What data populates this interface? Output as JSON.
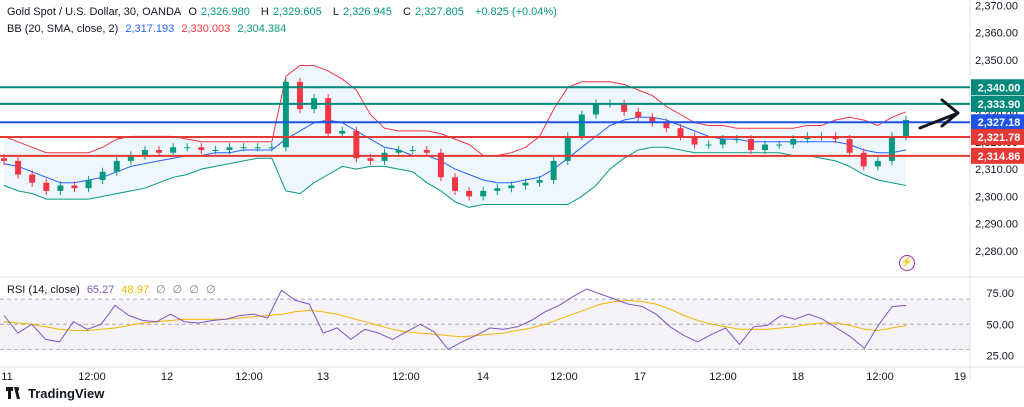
{
  "header": {
    "symbol": "Gold Spot / U.S. Dollar, 30, OANDA",
    "open_label": "O",
    "open": "2,326.980",
    "high_label": "H",
    "high": "2,329.605",
    "low_label": "L",
    "low": "2,326.945",
    "close_label": "C",
    "close": "2,327.805",
    "change": "+0.825 (+0.04%)"
  },
  "bb": {
    "label": "BB (20, SMA, close, 2)",
    "basis": "2,317.193",
    "upper": "2,330.003",
    "lower": "2,304.384"
  },
  "rsi": {
    "label": "RSI (14, close)",
    "value": "65.27",
    "ma": "48.97",
    "extras": [
      "∅",
      "∅",
      "∅",
      "∅"
    ]
  },
  "brand": "TradingView",
  "colors": {
    "up": "#089981",
    "down": "#f23645",
    "bb_basis": "#2962ff",
    "bb_upper": "#f23645",
    "bb_lower": "#089981",
    "rsi": "#7e57c2",
    "rsi_ma": "#f7b500",
    "level_green": "#00897b",
    "level_blue": "#1e53e5",
    "level_red": "#e53935"
  },
  "chart_data": [
    {
      "type": "line",
      "title": "Gold Spot / U.S. Dollar, 30, OANDA",
      "x_ticks": [
        "11",
        "12:00",
        "12",
        "12:00",
        "13",
        "12:00",
        "14",
        "12:00",
        "17",
        "12:00",
        "18",
        "12:00",
        "19"
      ],
      "y_ticks": [
        2280,
        2290,
        2300,
        2310,
        2320,
        2330,
        2340,
        2350,
        2360,
        2370
      ],
      "y_tick_labels": [
        "2,280.00",
        "2,290.00",
        "2,300.00",
        "2,310.00",
        "2,320.00",
        "2,330.00",
        "2,340.00",
        "2,350.00",
        "2,360.00",
        "2,370.00"
      ],
      "ylim": [
        2273,
        2372
      ],
      "grid": false,
      "horizontal_levels": [
        {
          "value": 2340.0,
          "label": "2,340.00",
          "color": "#00897b"
        },
        {
          "value": 2333.9,
          "label": "2,333.90",
          "color": "#00897b"
        },
        {
          "value": 2327.18,
          "label": "2,327.18",
          "color": "#1e53e5"
        },
        {
          "value": 2321.78,
          "label": "2,321.78",
          "color": "#e53935"
        },
        {
          "value": 2314.86,
          "label": "2,314.86",
          "color": "#e53935"
        }
      ],
      "series": [
        {
          "name": "Close",
          "values": [
            2313,
            2308,
            2305,
            2302,
            2304,
            2303,
            2306,
            2309,
            2313,
            2315,
            2317,
            2316,
            2318,
            2318,
            2317,
            2317,
            2318,
            2318,
            2318,
            2318,
            2342,
            2332,
            2336,
            2323,
            2324,
            2314,
            2313,
            2316,
            2317,
            2317,
            2316,
            2307,
            2302,
            2300,
            2302,
            2303,
            2304,
            2305,
            2306,
            2313,
            2322,
            2330,
            2334,
            2334,
            2331,
            2329,
            2327,
            2325,
            2322,
            2319,
            2319,
            2321,
            2321,
            2317,
            2319,
            2319,
            2321,
            2322,
            2322,
            2321,
            2316,
            2311,
            2313,
            2322,
            2328
          ]
        },
        {
          "name": "BB Upper",
          "values": [
            2322,
            2320,
            2318,
            2316,
            2316,
            2316,
            2316,
            2318,
            2321,
            2322,
            2322,
            2322,
            2322,
            2321,
            2320,
            2320,
            2320,
            2320,
            2320,
            2320,
            2344,
            2348,
            2348,
            2346,
            2343,
            2339,
            2330,
            2325,
            2324,
            2324,
            2324,
            2323,
            2321,
            2319,
            2315,
            2315,
            2316,
            2318,
            2322,
            2332,
            2340,
            2342,
            2342,
            2342,
            2341,
            2339,
            2337,
            2333,
            2330,
            2327,
            2326,
            2326,
            2325,
            2325,
            2325,
            2325,
            2325,
            2326,
            2326,
            2328,
            2329,
            2328,
            2326,
            2329,
            2331
          ]
        },
        {
          "name": "BB Basis",
          "values": [
            2312,
            2311,
            2309,
            2307,
            2305,
            2305,
            2306,
            2307,
            2309,
            2311,
            2312,
            2313,
            2314,
            2315,
            2315,
            2316,
            2316,
            2317,
            2317,
            2317,
            2321,
            2324,
            2327,
            2328,
            2327,
            2324,
            2321,
            2318,
            2317,
            2315,
            2315,
            2313,
            2310,
            2308,
            2306,
            2305,
            2305,
            2306,
            2307,
            2310,
            2314,
            2318,
            2322,
            2326,
            2328,
            2329,
            2329,
            2328,
            2326,
            2324,
            2322,
            2321,
            2321,
            2320,
            2320,
            2320,
            2320,
            2320,
            2320,
            2320,
            2319,
            2317,
            2316,
            2316,
            2317
          ]
        },
        {
          "name": "BB Lower",
          "values": [
            2304,
            2302,
            2301,
            2299,
            2299,
            2299,
            2299,
            2300,
            2301,
            2302,
            2303,
            2305,
            2307,
            2308,
            2310,
            2311,
            2312,
            2313,
            2314,
            2314,
            2302,
            2301,
            2305,
            2308,
            2311,
            2310,
            2311,
            2311,
            2310,
            2309,
            2305,
            2302,
            2298,
            2296,
            2297,
            2297,
            2297,
            2297,
            2297,
            2297,
            2297,
            2300,
            2304,
            2310,
            2314,
            2317,
            2318,
            2318,
            2317,
            2316,
            2316,
            2316,
            2316,
            2316,
            2316,
            2316,
            2315,
            2315,
            2314,
            2313,
            2311,
            2308,
            2306,
            2305,
            2304
          ]
        }
      ]
    },
    {
      "type": "line",
      "title": "RSI (14, close)",
      "y_ticks": [
        25,
        50,
        75
      ],
      "y_tick_labels": [
        "25.00",
        "50.00",
        "75.00"
      ],
      "ylim": [
        20,
        82
      ],
      "band": [
        30,
        70
      ],
      "series": [
        {
          "name": "RSI",
          "values": [
            57,
            43,
            50,
            38,
            36,
            52,
            46,
            50,
            65,
            57,
            53,
            52,
            58,
            52,
            51,
            53,
            54,
            57,
            58,
            55,
            77,
            69,
            66,
            43,
            47,
            38,
            46,
            43,
            38,
            44,
            50,
            44,
            30,
            36,
            41,
            47,
            46,
            48,
            53,
            60,
            65,
            72,
            78,
            74,
            70,
            66,
            64,
            58,
            48,
            41,
            36,
            42,
            47,
            34,
            48,
            49,
            57,
            54,
            58,
            54,
            47,
            40,
            31,
            49,
            64,
            65
          ]
        },
        {
          "name": "RSI MA",
          "values": [
            52,
            51,
            50,
            48,
            46,
            45,
            45,
            46,
            47,
            49,
            51,
            52,
            53,
            54,
            54,
            54,
            54,
            55,
            56,
            57,
            58,
            60,
            61,
            60,
            58,
            55,
            52,
            49,
            46,
            44,
            43,
            42,
            41,
            40,
            41,
            42,
            43,
            45,
            47,
            50,
            54,
            58,
            62,
            66,
            68,
            69,
            68,
            66,
            62,
            57,
            53,
            50,
            48,
            46,
            46,
            46,
            47,
            48,
            50,
            51,
            51,
            49,
            46,
            45,
            47,
            49
          ]
        }
      ]
    }
  ]
}
